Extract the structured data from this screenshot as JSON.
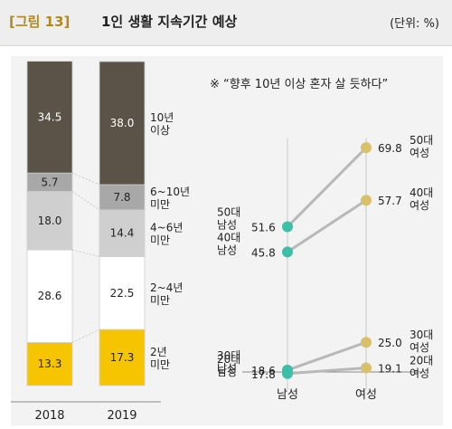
{
  "header": {
    "figure_label": "[그림 13]",
    "title": "1인 생활 지속기간 예상",
    "unit": "(단위: %)"
  },
  "colors": {
    "bar_10plus": "#5b5348",
    "bar_6to10": "#a8a8a8",
    "bar_4to6": "#cfcfcf",
    "bar_2to4": "#ffffff",
    "bar_under2": "#f6c400",
    "dot": "#3cbfa6",
    "dot_female": "#d9c06a",
    "line": "#b8b8b8"
  },
  "chart_data": [
    {
      "type": "bar",
      "stacked": true,
      "categories": [
        "2018",
        "2019"
      ],
      "series": [
        {
          "name": "2년\n미만",
          "values": [
            13.3,
            17.3
          ]
        },
        {
          "name": "2~4년\n미만",
          "values": [
            28.6,
            22.5
          ]
        },
        {
          "name": "4~6년\n미만",
          "values": [
            18.0,
            14.4
          ]
        },
        {
          "name": "6~10년\n미만",
          "values": [
            5.7,
            7.8
          ]
        },
        {
          "name": "10년\n이상",
          "values": [
            34.5,
            38.0
          ]
        }
      ],
      "labels_display": [
        [
          "13.3",
          "28.6",
          "18.0",
          "5.7",
          "34.5"
        ],
        [
          "17.3",
          "22.5",
          "14.4",
          "7.8",
          "38.0"
        ]
      ]
    },
    {
      "type": "line",
      "note": "※ “향후 10년 이상 혼자 살 듯하다”",
      "categories": [
        "남성",
        "여성"
      ],
      "series": [
        {
          "name": "50대",
          "values": [
            51.6,
            69.8
          ],
          "labels": [
            "51.6",
            "69.8"
          ]
        },
        {
          "name": "40대",
          "values": [
            45.8,
            57.7
          ],
          "labels": [
            "45.8",
            "57.7"
          ]
        },
        {
          "name": "30대",
          "values": [
            18.6,
            25.0
          ],
          "labels": [
            "18.6",
            "25.0"
          ]
        },
        {
          "name": "20대",
          "values": [
            17.8,
            19.1
          ],
          "labels": [
            "17.8",
            "19.1"
          ]
        }
      ],
      "ylim": [
        14,
        72
      ]
    }
  ]
}
